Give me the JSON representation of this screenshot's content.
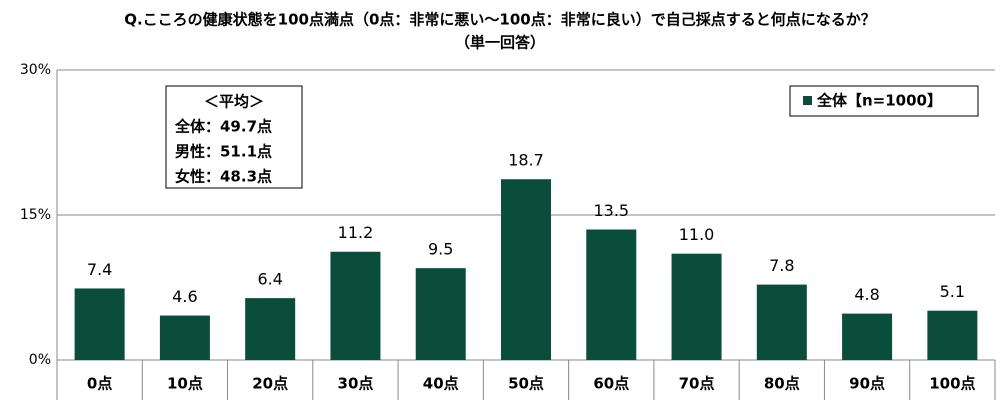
{
  "chart_data": {
    "type": "bar",
    "title": "Q.こころの健康状態を100点満点（0点：非常に悪い～100点：非常に良い）で自己採点すると何点になるか？",
    "subtitle": "（単一回答）",
    "categories": [
      "0点",
      "10点",
      "20点",
      "30点",
      "40点",
      "50点",
      "60点",
      "70点",
      "80点",
      "90点",
      "100点"
    ],
    "series": [
      {
        "name": "全体【n=1000】",
        "color": "#0b4d3b",
        "values": [
          7.4,
          4.6,
          6.4,
          11.2,
          9.5,
          18.7,
          13.5,
          11.0,
          7.8,
          4.8,
          5.1
        ],
        "value_labels": [
          "7.4",
          "4.6",
          "6.4",
          "11.2",
          "9.5",
          "18.7",
          "13.5",
          "11.0",
          "7.8",
          "4.8",
          "5.1"
        ]
      }
    ],
    "ylim": [
      0,
      30
    ],
    "yticks": [
      {
        "value": 0,
        "label": "0%"
      },
      {
        "value": 15,
        "label": "15%"
      },
      {
        "value": 30,
        "label": "30%"
      }
    ],
    "grid": true,
    "legend": "top-right",
    "annotations": [
      "＜平均＞",
      "全体：49.7点",
      "男性：51.1点",
      "女性：48.3点"
    ]
  }
}
